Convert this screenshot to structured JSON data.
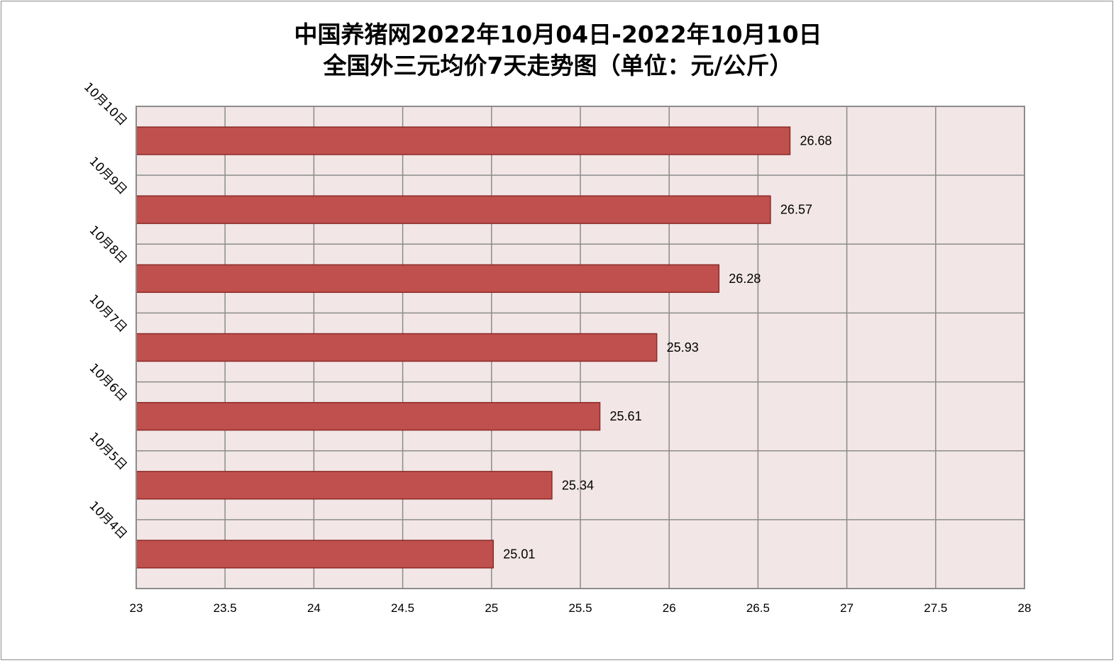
{
  "chart_data": {
    "type": "bar",
    "orientation": "horizontal",
    "title": "中国养猪网2022年10月04日-2022年10月10日",
    "subtitle": "全国外三元均价7天走势图（单位：元/公斤）",
    "categories": [
      "10月4日",
      "10月5日",
      "10月6日",
      "10月7日",
      "10月8日",
      "10月9日",
      "10月10日"
    ],
    "values": [
      25.01,
      25.34,
      25.61,
      25.93,
      26.28,
      26.57,
      26.68
    ],
    "xlim": [
      23,
      28
    ],
    "xticks": [
      "23",
      "23.5",
      "24",
      "24.5",
      "25",
      "25.5",
      "26",
      "26.5",
      "27",
      "27.5",
      "28"
    ],
    "grid": true,
    "data_labels": true,
    "colors": {
      "bar": "#c0504d",
      "bar_border": "#8c2b28",
      "plot_bg": "#f2e6e6",
      "grid": "#8c8c8c"
    }
  }
}
